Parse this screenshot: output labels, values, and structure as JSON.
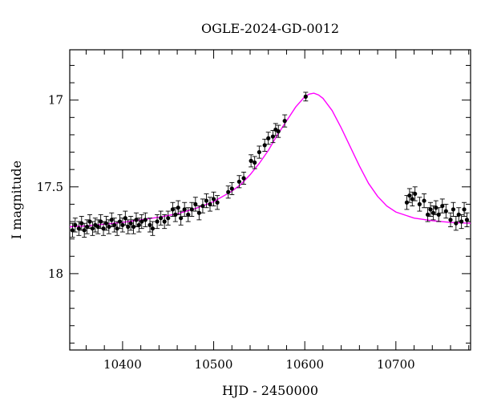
{
  "chart_data": {
    "type": "scatter",
    "title": "OGLE-2024-GD-0012",
    "xlabel": "HJD - 2450000",
    "ylabel": "I magnitude",
    "xlim": [
      10342,
      10782
    ],
    "ylim": [
      18.44,
      16.71
    ],
    "y_inverted": true,
    "x_ticks": [
      10400,
      10500,
      10600,
      10700
    ],
    "y_ticks": [
      17,
      17.5,
      18
    ],
    "x_tick_labels": [
      "10400",
      "10500",
      "10600",
      "10700"
    ],
    "y_tick_labels": [
      "17",
      "17.5",
      "18"
    ],
    "colors": {
      "model": "#ff00ff",
      "points": "#000000",
      "axes": "#000000"
    },
    "model": {
      "name": "",
      "color": "#ff00ff",
      "x": [
        10342,
        10360,
        10380,
        10400,
        10420,
        10440,
        10460,
        10480,
        10500,
        10520,
        10530,
        10540,
        10550,
        10560,
        10570,
        10580,
        10590,
        10600,
        10605,
        10610,
        10615,
        10620,
        10630,
        10640,
        10650,
        10660,
        10670,
        10680,
        10690,
        10700,
        10720,
        10740,
        10760,
        10782
      ],
      "y": [
        17.73,
        17.725,
        17.715,
        17.705,
        17.69,
        17.675,
        17.655,
        17.625,
        17.585,
        17.525,
        17.485,
        17.43,
        17.365,
        17.29,
        17.2,
        17.12,
        17.04,
        16.98,
        16.965,
        16.96,
        16.97,
        16.99,
        17.06,
        17.16,
        17.27,
        17.38,
        17.48,
        17.555,
        17.61,
        17.645,
        17.68,
        17.695,
        17.705,
        17.71
      ]
    },
    "points": [
      {
        "x": 10345,
        "y": 17.75,
        "err": 0.04
      },
      {
        "x": 10348,
        "y": 17.72,
        "err": 0.04
      },
      {
        "x": 10352,
        "y": 17.74,
        "err": 0.04
      },
      {
        "x": 10355,
        "y": 17.71,
        "err": 0.04
      },
      {
        "x": 10358,
        "y": 17.75,
        "err": 0.04
      },
      {
        "x": 10361,
        "y": 17.73,
        "err": 0.04
      },
      {
        "x": 10364,
        "y": 17.7,
        "err": 0.04
      },
      {
        "x": 10367,
        "y": 17.74,
        "err": 0.04
      },
      {
        "x": 10370,
        "y": 17.72,
        "err": 0.04
      },
      {
        "x": 10373,
        "y": 17.73,
        "err": 0.04
      },
      {
        "x": 10376,
        "y": 17.7,
        "err": 0.04
      },
      {
        "x": 10379,
        "y": 17.74,
        "err": 0.04
      },
      {
        "x": 10382,
        "y": 17.71,
        "err": 0.04
      },
      {
        "x": 10385,
        "y": 17.73,
        "err": 0.04
      },
      {
        "x": 10388,
        "y": 17.69,
        "err": 0.04
      },
      {
        "x": 10391,
        "y": 17.72,
        "err": 0.04
      },
      {
        "x": 10394,
        "y": 17.74,
        "err": 0.04
      },
      {
        "x": 10397,
        "y": 17.7,
        "err": 0.04
      },
      {
        "x": 10400,
        "y": 17.72,
        "err": 0.04
      },
      {
        "x": 10403,
        "y": 17.68,
        "err": 0.04
      },
      {
        "x": 10406,
        "y": 17.73,
        "err": 0.04
      },
      {
        "x": 10409,
        "y": 17.71,
        "err": 0.04
      },
      {
        "x": 10412,
        "y": 17.73,
        "err": 0.04
      },
      {
        "x": 10415,
        "y": 17.69,
        "err": 0.04
      },
      {
        "x": 10418,
        "y": 17.72,
        "err": 0.04
      },
      {
        "x": 10421,
        "y": 17.7,
        "err": 0.04
      },
      {
        "x": 10425,
        "y": 17.69,
        "err": 0.04
      },
      {
        "x": 10430,
        "y": 17.72,
        "err": 0.04
      },
      {
        "x": 10433,
        "y": 17.74,
        "err": 0.04
      },
      {
        "x": 10438,
        "y": 17.7,
        "err": 0.04
      },
      {
        "x": 10442,
        "y": 17.68,
        "err": 0.04
      },
      {
        "x": 10446,
        "y": 17.7,
        "err": 0.04
      },
      {
        "x": 10450,
        "y": 17.68,
        "err": 0.04
      },
      {
        "x": 10455,
        "y": 17.63,
        "err": 0.04
      },
      {
        "x": 10458,
        "y": 17.66,
        "err": 0.04
      },
      {
        "x": 10461,
        "y": 17.62,
        "err": 0.04
      },
      {
        "x": 10464,
        "y": 17.68,
        "err": 0.04
      },
      {
        "x": 10468,
        "y": 17.63,
        "err": 0.04
      },
      {
        "x": 10472,
        "y": 17.66,
        "err": 0.04
      },
      {
        "x": 10476,
        "y": 17.63,
        "err": 0.04
      },
      {
        "x": 10480,
        "y": 17.6,
        "err": 0.04
      },
      {
        "x": 10484,
        "y": 17.65,
        "err": 0.04
      },
      {
        "x": 10488,
        "y": 17.61,
        "err": 0.04
      },
      {
        "x": 10492,
        "y": 17.58,
        "err": 0.04
      },
      {
        "x": 10496,
        "y": 17.6,
        "err": 0.04
      },
      {
        "x": 10500,
        "y": 17.57,
        "err": 0.04
      },
      {
        "x": 10504,
        "y": 17.59,
        "err": 0.04
      },
      {
        "x": 10516,
        "y": 17.53,
        "err": 0.035
      },
      {
        "x": 10520,
        "y": 17.51,
        "err": 0.035
      },
      {
        "x": 10528,
        "y": 17.47,
        "err": 0.035
      },
      {
        "x": 10533,
        "y": 17.45,
        "err": 0.035
      },
      {
        "x": 10541,
        "y": 17.35,
        "err": 0.035
      },
      {
        "x": 10545,
        "y": 17.36,
        "err": 0.035
      },
      {
        "x": 10550,
        "y": 17.3,
        "err": 0.035
      },
      {
        "x": 10556,
        "y": 17.26,
        "err": 0.035
      },
      {
        "x": 10560,
        "y": 17.22,
        "err": 0.035
      },
      {
        "x": 10565,
        "y": 17.21,
        "err": 0.035
      },
      {
        "x": 10568,
        "y": 17.17,
        "err": 0.035
      },
      {
        "x": 10571,
        "y": 17.18,
        "err": 0.035
      },
      {
        "x": 10578,
        "y": 17.12,
        "err": 0.035
      },
      {
        "x": 10601,
        "y": 16.98,
        "err": 0.025
      },
      {
        "x": 10712,
        "y": 17.59,
        "err": 0.04
      },
      {
        "x": 10715,
        "y": 17.55,
        "err": 0.04
      },
      {
        "x": 10718,
        "y": 17.57,
        "err": 0.04
      },
      {
        "x": 10721,
        "y": 17.54,
        "err": 0.04
      },
      {
        "x": 10726,
        "y": 17.6,
        "err": 0.04
      },
      {
        "x": 10731,
        "y": 17.58,
        "err": 0.04
      },
      {
        "x": 10735,
        "y": 17.66,
        "err": 0.04
      },
      {
        "x": 10738,
        "y": 17.63,
        "err": 0.04
      },
      {
        "x": 10741,
        "y": 17.65,
        "err": 0.04
      },
      {
        "x": 10744,
        "y": 17.62,
        "err": 0.04
      },
      {
        "x": 10747,
        "y": 17.66,
        "err": 0.04
      },
      {
        "x": 10751,
        "y": 17.61,
        "err": 0.04
      },
      {
        "x": 10755,
        "y": 17.64,
        "err": 0.04
      },
      {
        "x": 10760,
        "y": 17.69,
        "err": 0.04
      },
      {
        "x": 10763,
        "y": 17.63,
        "err": 0.04
      },
      {
        "x": 10766,
        "y": 17.71,
        "err": 0.04
      },
      {
        "x": 10769,
        "y": 17.66,
        "err": 0.04
      },
      {
        "x": 10772,
        "y": 17.7,
        "err": 0.04
      },
      {
        "x": 10775,
        "y": 17.63,
        "err": 0.04
      },
      {
        "x": 10778,
        "y": 17.69,
        "err": 0.04
      }
    ],
    "grid": false,
    "legend": "none"
  }
}
